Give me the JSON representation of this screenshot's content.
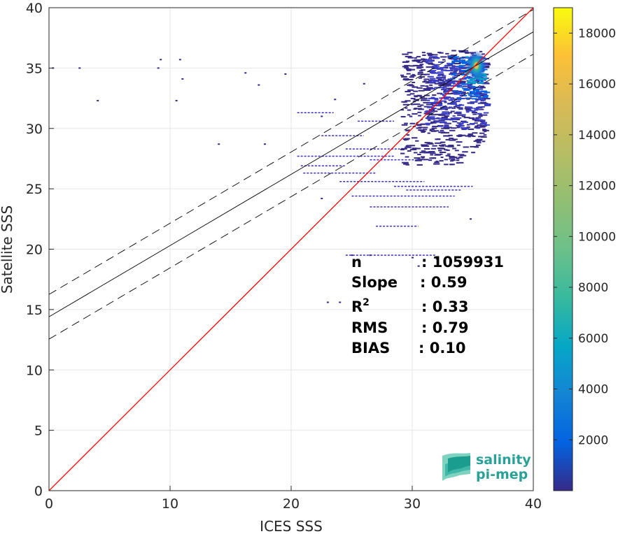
{
  "chart_data": {
    "type": "heatmap",
    "xlabel": "ICES SSS",
    "ylabel": "Satellite SSS",
    "xlim": [
      0,
      40
    ],
    "ylim": [
      0,
      40
    ],
    "xticks": [
      "0",
      "10",
      "20",
      "30",
      "40"
    ],
    "yticks": [
      "0",
      "5",
      "10",
      "15",
      "20",
      "25",
      "30",
      "35",
      "40"
    ],
    "grid": true,
    "colormap": "parula",
    "colorbar": {
      "range": [
        0,
        19000
      ],
      "ticks": [
        "2000",
        "4000",
        "6000",
        "8000",
        "10000",
        "12000",
        "14000",
        "16000",
        "18000"
      ]
    },
    "lines": {
      "identity": {
        "slope": 1.0,
        "intercept": 0.0,
        "color": "#ff0000"
      },
      "fit": {
        "slope": 0.59,
        "intercept": 14.4,
        "color": "#000000"
      },
      "fit_upper": {
        "slope": 0.59,
        "intercept": 16.25,
        "style": "dashed"
      },
      "fit_lower": {
        "slope": 0.59,
        "intercept": 12.55,
        "style": "dashed"
      }
    },
    "stats": [
      {
        "key": "n",
        "sep": ": ",
        "value": "1059931"
      },
      {
        "key": "Slope",
        "sep": ": ",
        "value": "0.59"
      },
      {
        "key": "R",
        "sup": "2",
        "sep": ": ",
        "value": "0.33"
      },
      {
        "key": "RMS",
        "sep": ": ",
        "value": "0.79"
      },
      {
        "key": "BIAS",
        "sep": ": ",
        "value": "0.10"
      }
    ],
    "density_core": {
      "x": 35.3,
      "y": 35.2,
      "peak_count": 18500
    },
    "density_regions": [
      {
        "x": [
          29,
          36
        ],
        "y": [
          27,
          36.5
        ],
        "level": 600
      },
      {
        "x": [
          31,
          36
        ],
        "y": [
          30,
          36
        ],
        "level": 1500
      },
      {
        "x": [
          33,
          36
        ],
        "y": [
          32.5,
          36
        ],
        "level": 3000
      },
      {
        "x": [
          34.3,
          35.8
        ],
        "y": [
          33.8,
          36
        ],
        "level": 6000
      }
    ],
    "scatter_points": [
      [
        2.5,
        35
      ],
      [
        0.3,
        35
      ],
      [
        9,
        35
      ],
      [
        9.2,
        35.7
      ],
      [
        10.8,
        35.7
      ],
      [
        11,
        34.1
      ],
      [
        10.5,
        32.3
      ],
      [
        4,
        32.3
      ],
      [
        16.2,
        34.6
      ],
      [
        17.3,
        33.6
      ],
      [
        19.5,
        34.5
      ],
      [
        17.8,
        28.7
      ],
      [
        14,
        28.7
      ],
      [
        22.5,
        31
      ],
      [
        23.6,
        32.4
      ],
      [
        26,
        33.7
      ],
      [
        23,
        15.6
      ],
      [
        24,
        15.6
      ],
      [
        25,
        19.5
      ],
      [
        26.5,
        19.5
      ],
      [
        30,
        19.3
      ],
      [
        22.5,
        24.2
      ],
      [
        30.5,
        18.6
      ],
      [
        34.8,
        22.5
      ],
      [
        32,
        19.2
      ]
    ],
    "horizontal_streaks": [
      [
        20.5,
        28.5,
        27.7
      ],
      [
        21,
        27,
        26.3
      ],
      [
        24,
        31,
        25.6
      ],
      [
        25,
        33.5,
        24.4
      ],
      [
        26.5,
        33,
        23.5
      ],
      [
        24.5,
        29,
        28.3
      ],
      [
        22.5,
        26,
        29.4
      ],
      [
        20.8,
        24.5,
        26.9
      ],
      [
        29.5,
        34,
        24.9
      ],
      [
        28.5,
        35,
        25.2
      ],
      [
        27,
        30.5,
        21.9
      ],
      [
        24.5,
        32,
        19.5
      ],
      [
        26.5,
        30.5,
        27.4
      ],
      [
        25.5,
        28.5,
        30.6
      ],
      [
        20.5,
        23.5,
        31.3
      ]
    ],
    "logo": {
      "line1": "salinity",
      "line2": "pi-mep"
    }
  }
}
